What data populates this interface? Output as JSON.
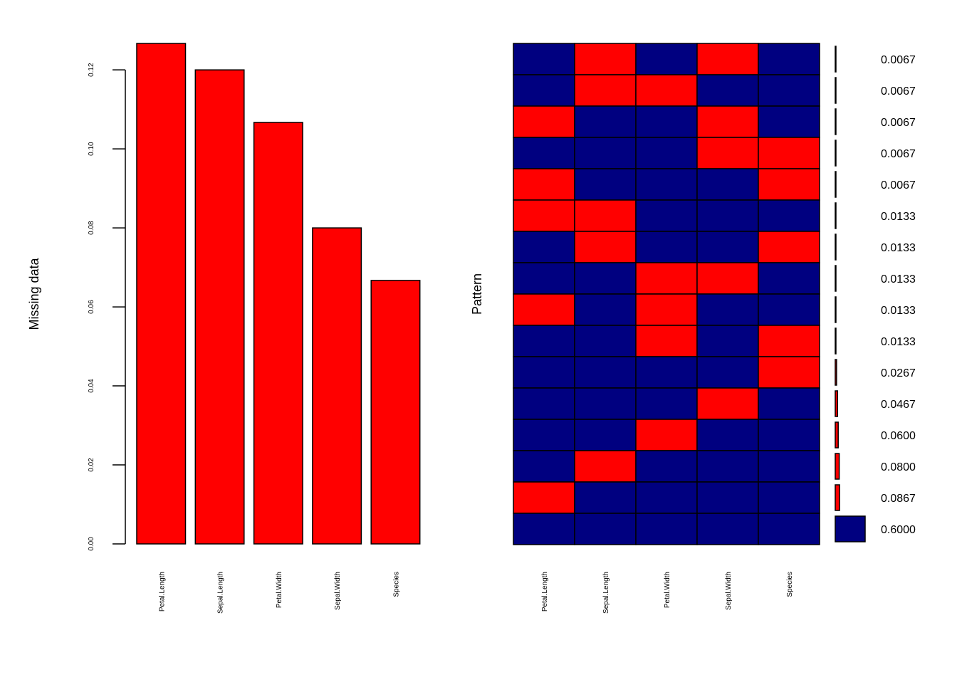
{
  "chart_data": [
    {
      "type": "bar",
      "ylabel": "Missing data",
      "categories": [
        "Petal.Length",
        "Sepal.Length",
        "Petal.Width",
        "Sepal.Width",
        "Species"
      ],
      "values": [
        0.1267,
        0.12,
        0.1067,
        0.08,
        0.0667
      ],
      "ylim": [
        0,
        0.1267
      ],
      "yticks": [
        "0.00",
        "0.02",
        "0.04",
        "0.06",
        "0.08",
        "0.10",
        "0.12"
      ],
      "colors": {
        "bar": "#ff0000",
        "outline": "#000000"
      },
      "grid": false
    },
    {
      "type": "heatmap",
      "ylabel": "Pattern",
      "columns": [
        "Petal.Length",
        "Sepal.Length",
        "Petal.Width",
        "Sepal.Width",
        "Species"
      ],
      "rows": [
        {
          "pattern": [
            0,
            1,
            0,
            1,
            0
          ],
          "proportion": "0.0067",
          "value": 0.0067
        },
        {
          "pattern": [
            0,
            1,
            1,
            0,
            0
          ],
          "proportion": "0.0067",
          "value": 0.0067
        },
        {
          "pattern": [
            1,
            0,
            0,
            1,
            0
          ],
          "proportion": "0.0067",
          "value": 0.0067
        },
        {
          "pattern": [
            0,
            0,
            0,
            1,
            1
          ],
          "proportion": "0.0067",
          "value": 0.0067
        },
        {
          "pattern": [
            1,
            0,
            0,
            0,
            1
          ],
          "proportion": "0.0067",
          "value": 0.0067
        },
        {
          "pattern": [
            1,
            1,
            0,
            0,
            0
          ],
          "proportion": "0.0133",
          "value": 0.0133
        },
        {
          "pattern": [
            0,
            1,
            0,
            0,
            1
          ],
          "proportion": "0.0133",
          "value": 0.0133
        },
        {
          "pattern": [
            0,
            0,
            1,
            1,
            0
          ],
          "proportion": "0.0133",
          "value": 0.0133
        },
        {
          "pattern": [
            1,
            0,
            1,
            0,
            0
          ],
          "proportion": "0.0133",
          "value": 0.0133
        },
        {
          "pattern": [
            0,
            0,
            1,
            0,
            1
          ],
          "proportion": "0.0133",
          "value": 0.0133
        },
        {
          "pattern": [
            0,
            0,
            0,
            0,
            1
          ],
          "proportion": "0.0267",
          "value": 0.0267
        },
        {
          "pattern": [
            0,
            0,
            0,
            1,
            0
          ],
          "proportion": "0.0467",
          "value": 0.0467
        },
        {
          "pattern": [
            0,
            0,
            1,
            0,
            0
          ],
          "proportion": "0.0600",
          "value": 0.06
        },
        {
          "pattern": [
            0,
            1,
            0,
            0,
            0
          ],
          "proportion": "0.0800",
          "value": 0.08
        },
        {
          "pattern": [
            1,
            0,
            0,
            0,
            0
          ],
          "proportion": "0.0867",
          "value": 0.0867
        },
        {
          "pattern": [
            0,
            0,
            0,
            0,
            0
          ],
          "proportion": "0.6000",
          "value": 0.6
        }
      ],
      "colors": {
        "missing": "#ff0000",
        "observed": "#000080",
        "outline": "#000000"
      },
      "grid": false
    }
  ]
}
